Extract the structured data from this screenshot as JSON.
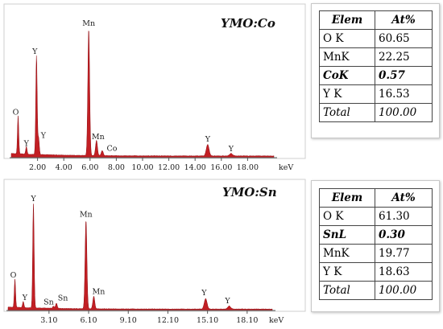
{
  "chart_data": [
    {
      "type": "line",
      "title": "YMO:Co",
      "xlabel": "keV",
      "xlim": [
        0,
        20
      ],
      "x_ticks": [
        "2.00",
        "4.00",
        "6.00",
        "8.00",
        "10.00",
        "12.00",
        "14.00",
        "16.00",
        "18.00"
      ],
      "x_tick_values": [
        2,
        4,
        6,
        8,
        10,
        12,
        14,
        16,
        18
      ],
      "peaks": [
        {
          "label": "O",
          "x": 0.52,
          "y": 0.3
        },
        {
          "label": "Y",
          "x": 1.15,
          "y": 0.06
        },
        {
          "label": "Y",
          "x": 1.92,
          "y": 0.78
        },
        {
          "label": "Y",
          "x": 2.08,
          "y": 0.13
        },
        {
          "label": "Mn",
          "x": 5.9,
          "y": 1.0
        },
        {
          "label": "Mn",
          "x": 6.49,
          "y": 0.12
        },
        {
          "label": "Co",
          "x": 6.93,
          "y": 0.04
        },
        {
          "label": "Y",
          "x": 14.96,
          "y": 0.09
        },
        {
          "label": "Y",
          "x": 16.74,
          "y": 0.02
        }
      ]
    },
    {
      "type": "line",
      "title": "YMO:Sn",
      "xlabel": "keV",
      "xlim": [
        0,
        20
      ],
      "x_ticks": [
        "3.10",
        "6.10",
        "9.10",
        "12.10",
        "15.10",
        "18.10"
      ],
      "x_tick_values": [
        3.1,
        6.1,
        9.1,
        12.1,
        15.1,
        18.1
      ],
      "peaks": [
        {
          "label": "O",
          "x": 0.52,
          "y": 0.27
        },
        {
          "label": "Y",
          "x": 1.15,
          "y": 0.06
        },
        {
          "label": "Y",
          "x": 1.92,
          "y": 1.0
        },
        {
          "label": "Sn",
          "x": 3.44,
          "y": 0.02
        },
        {
          "label": "Sn",
          "x": 3.66,
          "y": 0.05
        },
        {
          "label": "Mn",
          "x": 5.9,
          "y": 0.85
        },
        {
          "label": "Mn",
          "x": 6.49,
          "y": 0.12
        },
        {
          "label": "Y",
          "x": 14.96,
          "y": 0.1
        },
        {
          "label": "Y",
          "x": 16.74,
          "y": 0.03
        }
      ]
    }
  ],
  "tables": [
    {
      "header": [
        "Elem",
        "At%"
      ],
      "rows": [
        {
          "elem": "O K",
          "at": "60.65",
          "style": "normal"
        },
        {
          "elem": "MnK",
          "at": "22.25",
          "style": "normal"
        },
        {
          "elem": "CoK",
          "at": "0.57",
          "style": "emph"
        },
        {
          "elem": "Y K",
          "at": "16.53",
          "style": "normal"
        },
        {
          "elem": "Total",
          "at": "100.00",
          "style": "total"
        }
      ]
    },
    {
      "header": [
        "Elem",
        "At%"
      ],
      "rows": [
        {
          "elem": "O K",
          "at": "61.30",
          "style": "normal"
        },
        {
          "elem": "SnL",
          "at": "0.30",
          "style": "emph"
        },
        {
          "elem": "MnK",
          "at": "19.77",
          "style": "normal"
        },
        {
          "elem": "Y K",
          "at": "18.63",
          "style": "normal"
        },
        {
          "elem": "Total",
          "at": "100.00",
          "style": "total"
        }
      ]
    }
  ],
  "colors": {
    "spectrum_fill": "#c21f24",
    "spectrum_stroke": "#8e0d12",
    "axis": "#555555",
    "frame": "#cfcfcf"
  }
}
